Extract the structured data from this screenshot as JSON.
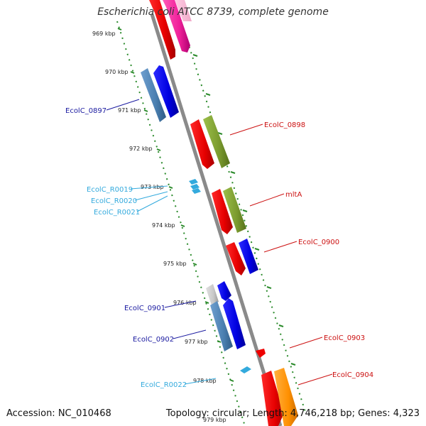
{
  "title": "Escherichia coli ATCC 8739, complete genome",
  "accession": "Accession: NC_010468",
  "summary": "Topology: circular; Length: 4,746,218 bp; Genes: 4,323",
  "colors": {
    "backbone": "#8a8a8a",
    "ticks": "#2a8a2a",
    "label_dark_blue": "#1a1aa0",
    "label_red": "#cc1111",
    "label_cyan": "#33aadd"
  },
  "ticks": [
    {
      "label": "969 kbp"
    },
    {
      "label": "970 kbp"
    },
    {
      "label": "971 kbp"
    },
    {
      "label": "972 kbp"
    },
    {
      "label": "973 kbp"
    },
    {
      "label": "974 kbp"
    },
    {
      "label": "975 kbp"
    },
    {
      "label": "976 kbp"
    },
    {
      "label": "977 kbp"
    },
    {
      "label": "978 kbp"
    },
    {
      "label": "979 kbp"
    }
  ],
  "genes": [
    {
      "name": "EcolC_0897",
      "color": "dark-blue"
    },
    {
      "name": "EcolC_0898",
      "color": "red"
    },
    {
      "name": "EcolC_R0019",
      "color": "cyan"
    },
    {
      "name": "EcolC_R0020",
      "color": "cyan"
    },
    {
      "name": "EcolC_R0021",
      "color": "cyan"
    },
    {
      "name": "mltA",
      "color": "red"
    },
    {
      "name": "EcolC_0900",
      "color": "red"
    },
    {
      "name": "EcolC_0901",
      "color": "dark-blue"
    },
    {
      "name": "EcolC_0902",
      "color": "dark-blue"
    },
    {
      "name": "EcolC_0903",
      "color": "red"
    },
    {
      "name": "EcolC_R0022",
      "color": "cyan"
    },
    {
      "name": "EcolC_0904",
      "color": "red"
    }
  ]
}
